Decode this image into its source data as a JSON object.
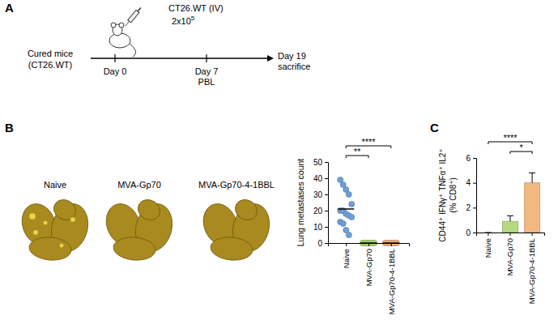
{
  "panel_labels": [
    "A",
    "B",
    "C"
  ],
  "timeline": {
    "start_label": [
      "Cured mice",
      "(CT26.WT)"
    ],
    "injection": "CT26.WT (IV)",
    "dose": "2x10",
    "dose_exponent": "5",
    "events": [
      {
        "label": "Day 0"
      },
      {
        "label": "Day 7",
        "note": "PBL"
      },
      {
        "label": "Day 19",
        "note": "sacrifice"
      }
    ]
  },
  "photo": {
    "labels": [
      "Naive",
      "MVA-Gp70",
      "MVA-Gp70-4-1BBL"
    ]
  },
  "chart_data": [
    {
      "type": "scatter",
      "categories": [
        "Naive",
        "MVA-Gp70",
        "MVA-Gp70-4-1BBL"
      ],
      "points": [
        [
          39,
          36,
          33,
          30,
          24,
          20,
          20,
          18,
          17,
          16,
          13,
          12,
          8,
          5
        ],
        [
          0,
          0,
          0,
          0,
          0,
          0,
          0,
          0,
          0,
          0
        ],
        [
          0,
          0,
          0,
          0,
          0,
          0,
          0,
          0,
          0,
          0
        ]
      ],
      "means": [
        21,
        0,
        0
      ],
      "colors": [
        "#6f9fd8",
        "#a8d86e",
        "#f5b27a"
      ],
      "ylabel": "Lung metastases count",
      "ylim": [
        0,
        50
      ],
      "yticks": [
        0,
        10,
        20,
        30,
        40,
        50
      ],
      "annotations": [
        {
          "text": "****",
          "between": [
            "Naive",
            "MVA-Gp70-4-1BBL"
          ]
        },
        {
          "text": "**",
          "between": [
            "Naive",
            "MVA-Gp70"
          ]
        }
      ]
    },
    {
      "type": "bar",
      "categories": [
        "Naive",
        "MVA-Gp70",
        "MVA-Gp70-4-1BBL"
      ],
      "values": [
        0,
        0.9,
        4.0
      ],
      "errors": [
        0,
        0.45,
        0.8
      ],
      "colors": [
        "#6f9fd8",
        "#b5d97f",
        "#f2b880"
      ],
      "ylabel": [
        "CD44⁺ IFNγ⁺ TNFα⁺ IL2⁺",
        "(% CD8⁺)"
      ],
      "ylim": [
        0,
        6
      ],
      "yticks": [
        0,
        2,
        4,
        6
      ],
      "annotations": [
        {
          "text": "****",
          "between": [
            "Naive",
            "MVA-Gp70-4-1BBL"
          ]
        },
        {
          "text": "*",
          "between": [
            "MVA-Gp70",
            "MVA-Gp70-4-1BBL"
          ]
        }
      ]
    }
  ]
}
